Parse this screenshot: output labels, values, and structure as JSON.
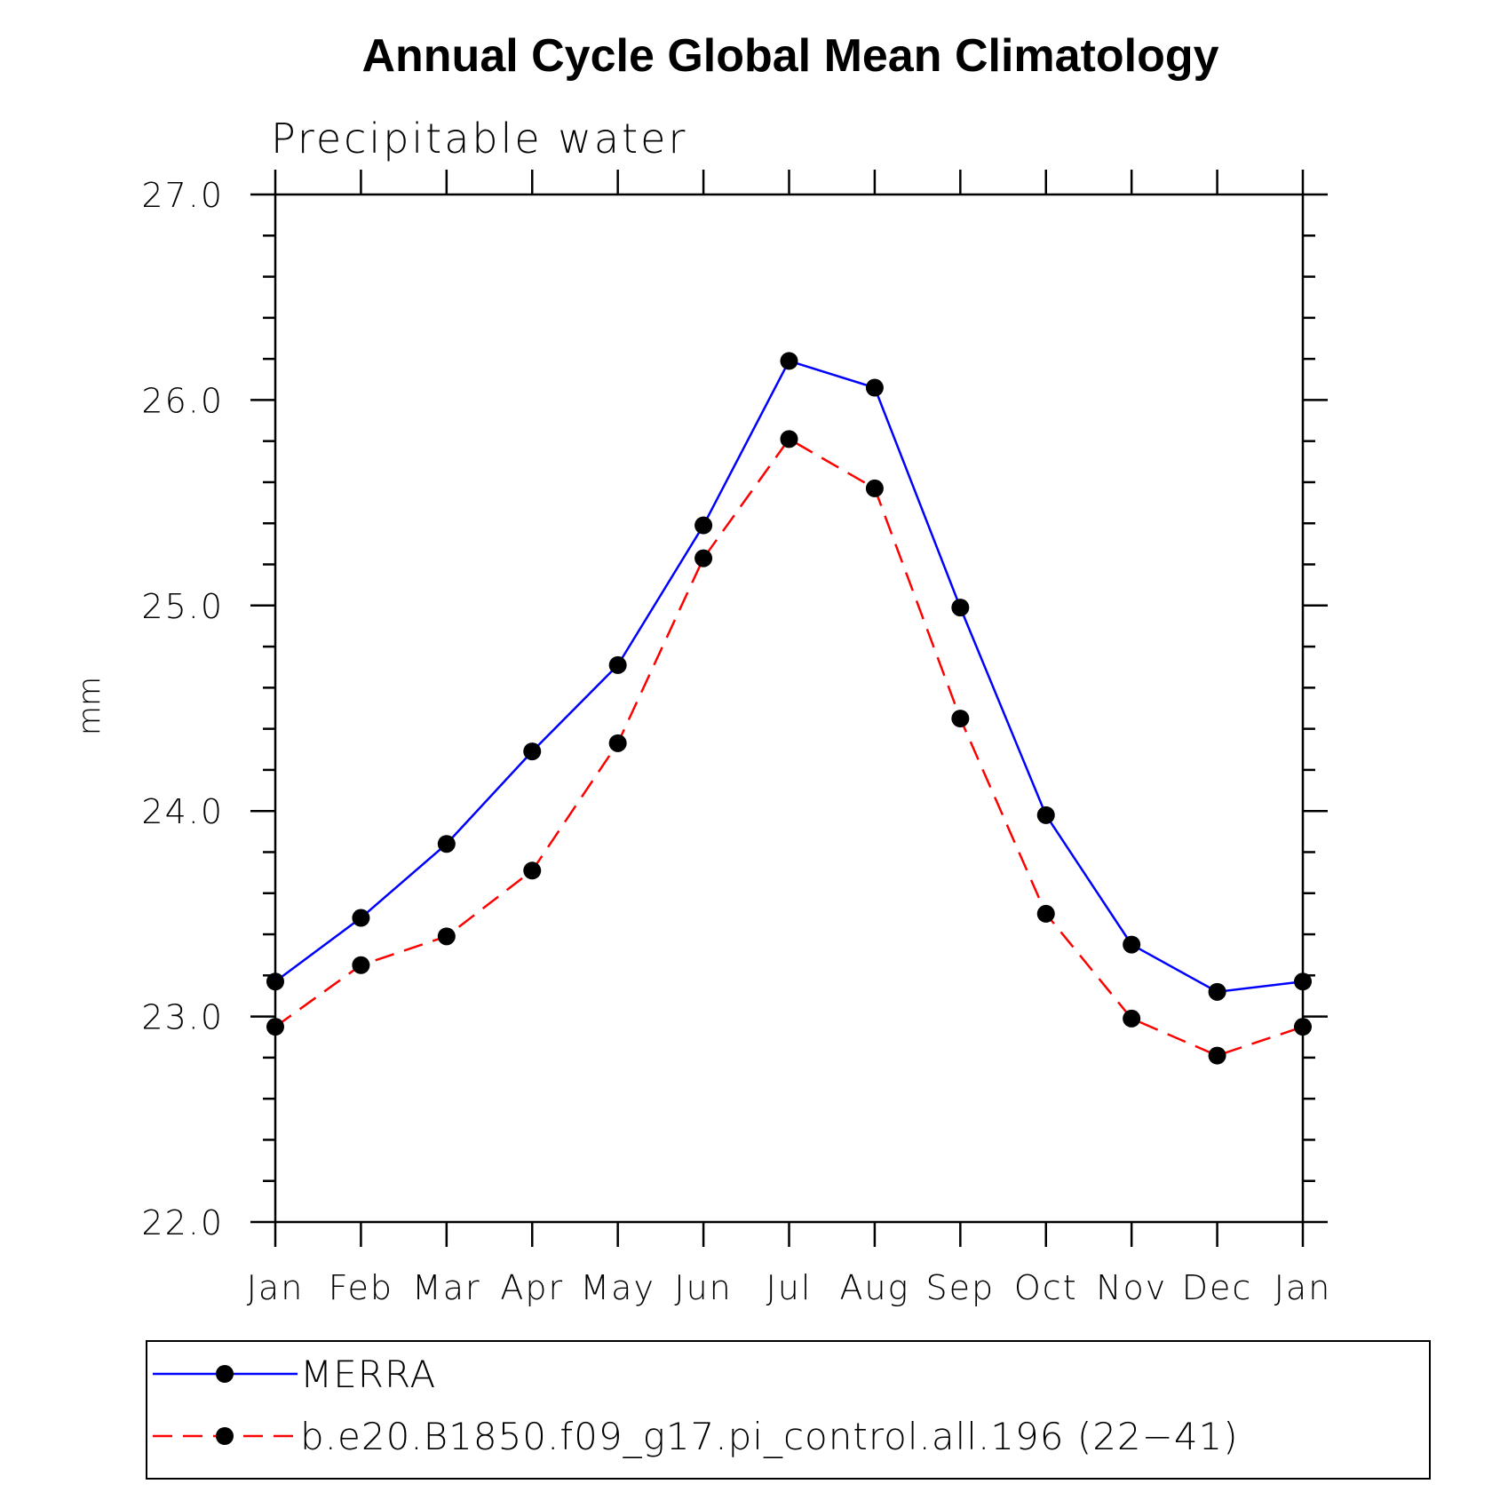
{
  "chart_data": {
    "type": "line",
    "title": "Annual Cycle Global Mean Climatology",
    "subtitle": "Precipitable water",
    "xlabel": "",
    "ylabel": "mm",
    "ylim": [
      22.0,
      27.0
    ],
    "y_major_ticks": [
      "22.0",
      "23.0",
      "24.0",
      "25.0",
      "26.0",
      "27.0"
    ],
    "categories": [
      "Jan",
      "Feb",
      "Mar",
      "Apr",
      "May",
      "Jun",
      "Jul",
      "Aug",
      "Sep",
      "Oct",
      "Nov",
      "Dec",
      "Jan"
    ],
    "series": [
      {
        "name": "MERRA",
        "color": "#0000ff",
        "style": "solid",
        "marker": "filled-circle",
        "values": [
          23.17,
          23.48,
          23.84,
          24.29,
          24.71,
          25.39,
          26.19,
          26.06,
          24.99,
          23.98,
          23.35,
          23.12,
          23.17
        ]
      },
      {
        "name": "b.e20.B1850.f09_g17.pi_control.all.196 (22−41)",
        "color": "#ff0000",
        "style": "dashed",
        "marker": "filled-circle",
        "values": [
          22.95,
          23.25,
          23.39,
          23.71,
          24.33,
          25.23,
          25.81,
          25.57,
          24.45,
          23.5,
          22.99,
          22.81,
          22.95
        ]
      }
    ],
    "grid": false,
    "legend_position": "bottom"
  }
}
